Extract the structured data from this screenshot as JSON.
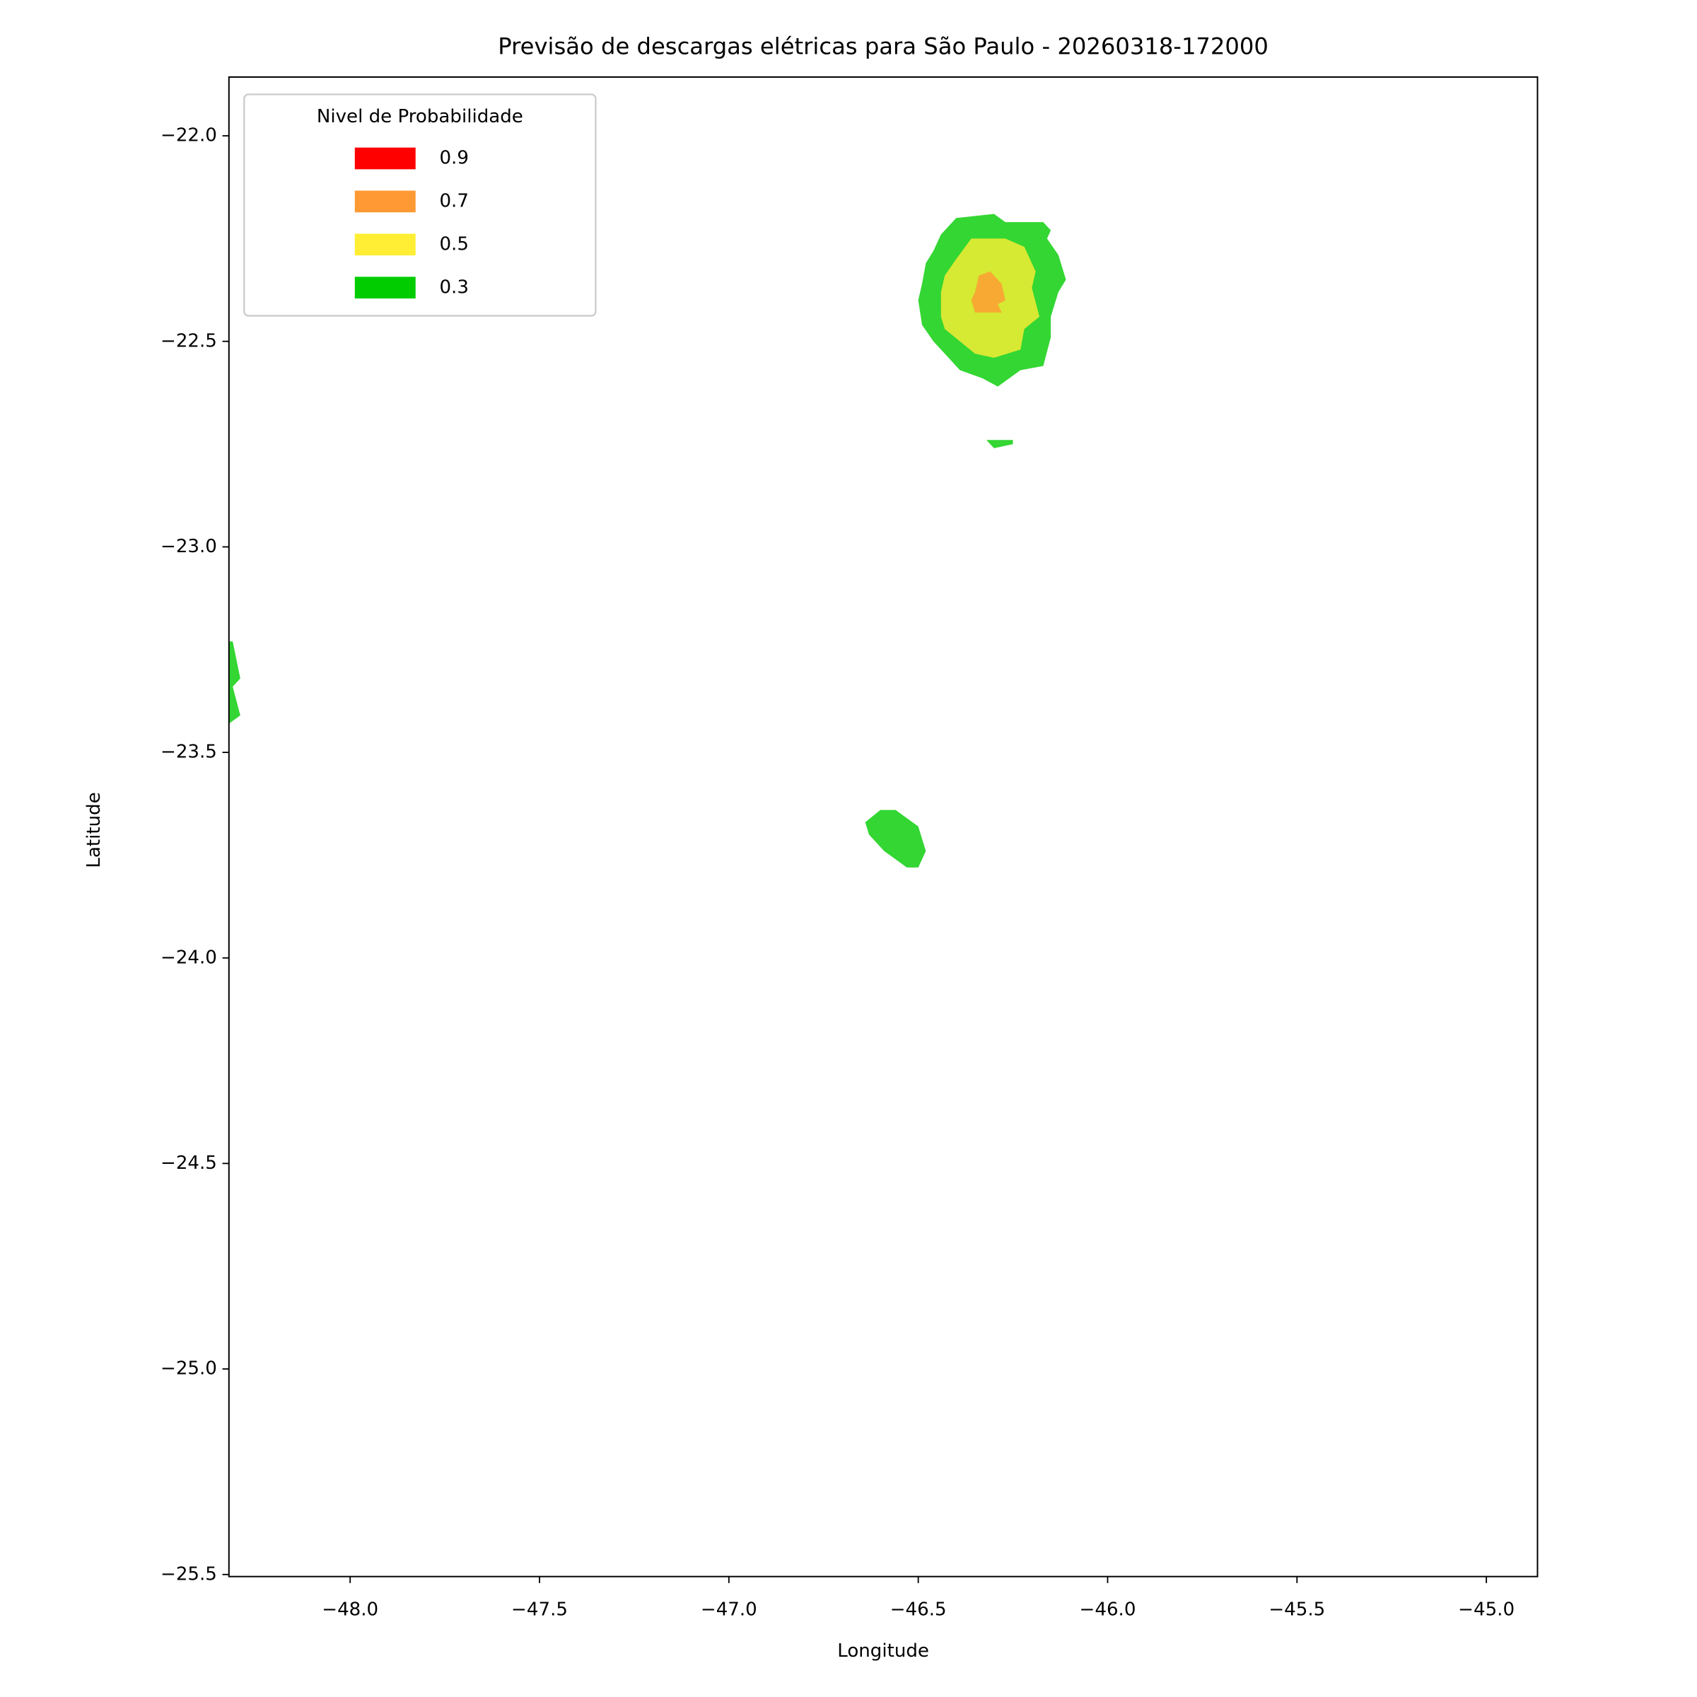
{
  "chart_data": {
    "type": "contour",
    "title": "Previsão de descargas elétricas para São Paulo - 20260318-172000",
    "x_label": "Longitude",
    "y_label": "Latitude",
    "legend_title": "Nivel de Probabilidade",
    "legend_position": "upper left",
    "alpha": 0.8,
    "xlim": [
      -48.32,
      -44.865
    ],
    "ylim": [
      -25.505,
      -21.857
    ],
    "xticks": [
      {
        "value": -48,
        "label": "−48.0"
      },
      {
        "value": -47.5,
        "label": "−47.5"
      },
      {
        "value": -47,
        "label": "−47.0"
      },
      {
        "value": -46.5,
        "label": "−46.5"
      },
      {
        "value": -46,
        "label": "−46.0"
      },
      {
        "value": -45.5,
        "label": "−45.5"
      },
      {
        "value": -45,
        "label": "−45.0"
      }
    ],
    "yticks": [
      {
        "value": -22,
        "label": "−22.0"
      },
      {
        "value": -22.5,
        "label": "−22.5"
      },
      {
        "value": -23,
        "label": "−23.0"
      },
      {
        "value": -23.5,
        "label": "−23.5"
      },
      {
        "value": -24,
        "label": "−24.0"
      },
      {
        "value": -24.5,
        "label": "−24.5"
      },
      {
        "value": -25,
        "label": "−25.0"
      },
      {
        "value": -25.5,
        "label": "−25.5"
      }
    ],
    "series": [
      {
        "name": "0.9",
        "color": "#ff0000",
        "polygons": []
      },
      {
        "name": "0.7",
        "color": "#ff9933",
        "polygons": [
          {
            "x": [
              -46.34,
              -46.31,
              -46.28,
              -46.27,
              -46.29,
              -46.28,
              -46.35,
              -46.36,
              -46.35
            ],
            "y": [
              -22.34,
              -22.33,
              -22.36,
              -22.4,
              -22.41,
              -22.43,
              -22.43,
              -22.4,
              -22.38
            ]
          }
        ]
      },
      {
        "name": "0.5",
        "color": "#ffee33",
        "polygons": [
          {
            "x": [
              -46.36,
              -46.27,
              -46.22,
              -46.19,
              -46.2,
              -46.18,
              -46.22,
              -46.23,
              -46.3,
              -46.35,
              -46.39,
              -46.43,
              -46.44,
              -46.44,
              -46.43,
              -46.4
            ],
            "y": [
              -22.25,
              -22.25,
              -22.27,
              -22.33,
              -22.37,
              -22.44,
              -22.47,
              -22.52,
              -22.54,
              -22.53,
              -22.5,
              -22.47,
              -22.44,
              -22.38,
              -22.34,
              -22.3
            ]
          }
        ]
      },
      {
        "name": "0.3",
        "color": "#00cc00",
        "polygons": [
          {
            "x": [
              -46.4,
              -46.3,
              -46.27,
              -46.17,
              -46.15,
              -46.16,
              -46.13,
              -46.11,
              -46.13,
              -46.15,
              -46.15,
              -46.17,
              -46.23,
              -46.29,
              -46.33,
              -46.39,
              -46.42,
              -46.46,
              -46.49,
              -46.5,
              -46.49,
              -46.48,
              -46.46,
              -46.44
            ],
            "y": [
              -22.2,
              -22.19,
              -22.21,
              -22.21,
              -22.23,
              -22.25,
              -22.29,
              -22.35,
              -22.38,
              -22.44,
              -22.49,
              -22.56,
              -22.57,
              -22.61,
              -22.59,
              -22.57,
              -22.54,
              -22.5,
              -22.46,
              -22.4,
              -22.36,
              -22.31,
              -22.28,
              -22.24
            ]
          },
          {
            "x": [
              -46.32,
              -46.25,
              -46.25,
              -46.3
            ],
            "y": [
              -22.74,
              -22.74,
              -22.75,
              -22.76
            ]
          },
          {
            "x": [
              -48.32,
              -48.31,
              -48.29,
              -48.31,
              -48.29,
              -48.32
            ],
            "y": [
              -23.23,
              -23.23,
              -23.32,
              -23.34,
              -23.41,
              -23.43
            ]
          },
          {
            "x": [
              -46.6,
              -46.56,
              -46.5,
              -46.48,
              -46.5,
              -46.53,
              -46.59,
              -46.63,
              -46.64
            ],
            "y": [
              -23.64,
              -23.64,
              -23.68,
              -23.74,
              -23.78,
              -23.78,
              -23.74,
              -23.7,
              -23.67
            ]
          }
        ]
      }
    ]
  }
}
